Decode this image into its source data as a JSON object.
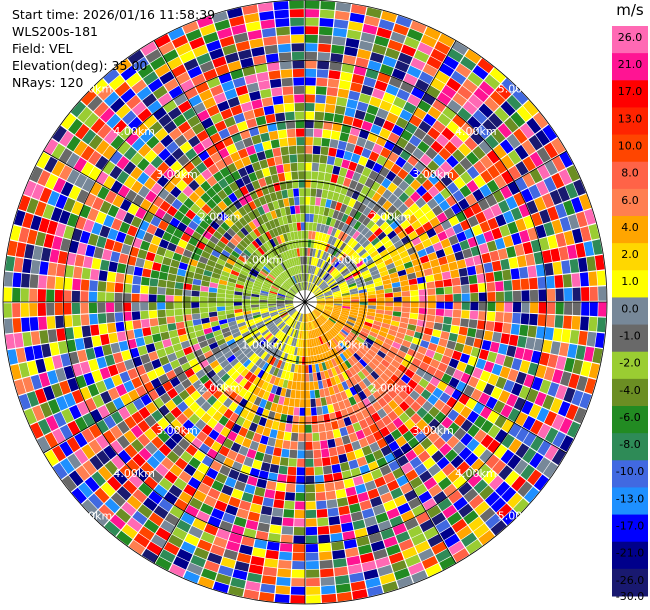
{
  "header": {
    "start_time": "Start time: 2026/01/16 11:58:39",
    "instrument": "WLS200s-181",
    "field": "Field: VEL",
    "elevation": "Elevation(deg): 35.00",
    "nrays": "NRays: 120"
  },
  "colorbar": {
    "unit": "m/s",
    "ticks": [
      "26.0",
      "21.0",
      "17.0",
      "13.0",
      "10.0",
      "8.0",
      "6.0",
      "4.0",
      "2.0",
      "1.0",
      "0.0",
      "-1.0",
      "-2.0",
      "-4.0",
      "-6.0",
      "-8.0",
      "-10.0",
      "-13.0",
      "-17.0",
      "-21.0",
      "-26.0",
      "-30.0"
    ],
    "colors": [
      "#ff69b4",
      "#ff1493",
      "#ff0000",
      "#ff2400",
      "#ff4500",
      "#ff6347",
      "#ff7f50",
      "#ffa500",
      "#ffd700",
      "#ffff00",
      "#778899",
      "#696969",
      "#9acd32",
      "#6b8e23",
      "#228b22",
      "#2e8b57",
      "#4169e1",
      "#1e90ff",
      "#0000ff",
      "#00008b",
      "#191970"
    ]
  },
  "ring_labels": [
    "1.00km",
    "2.00km",
    "3.00km",
    "4.00km",
    "5.00km"
  ],
  "scan": {
    "nrays": 120,
    "max_range_km": 5.0
  }
}
